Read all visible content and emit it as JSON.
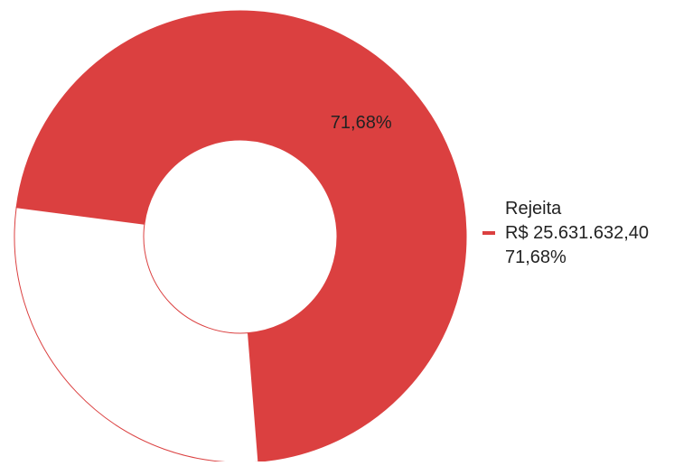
{
  "chart_data": {
    "type": "pie",
    "donut": true,
    "slices": [
      {
        "label": "Rejeita",
        "value": 71.68,
        "amount": "R$ 25.631.632,40",
        "percent_label": "71,68%",
        "color": "#db4040",
        "data_label": "71,68%"
      },
      {
        "label": "",
        "value": 28.32,
        "amount": "",
        "percent_label": "",
        "color": "#ffffff",
        "stroke": "#db4040",
        "data_label": ""
      }
    ],
    "legend": {
      "placement": "right",
      "entries": [
        {
          "name": "Rejeita",
          "amount": "R$ 25.631.632,40",
          "percent": "71,68%",
          "color": "#db4040"
        }
      ]
    }
  }
}
